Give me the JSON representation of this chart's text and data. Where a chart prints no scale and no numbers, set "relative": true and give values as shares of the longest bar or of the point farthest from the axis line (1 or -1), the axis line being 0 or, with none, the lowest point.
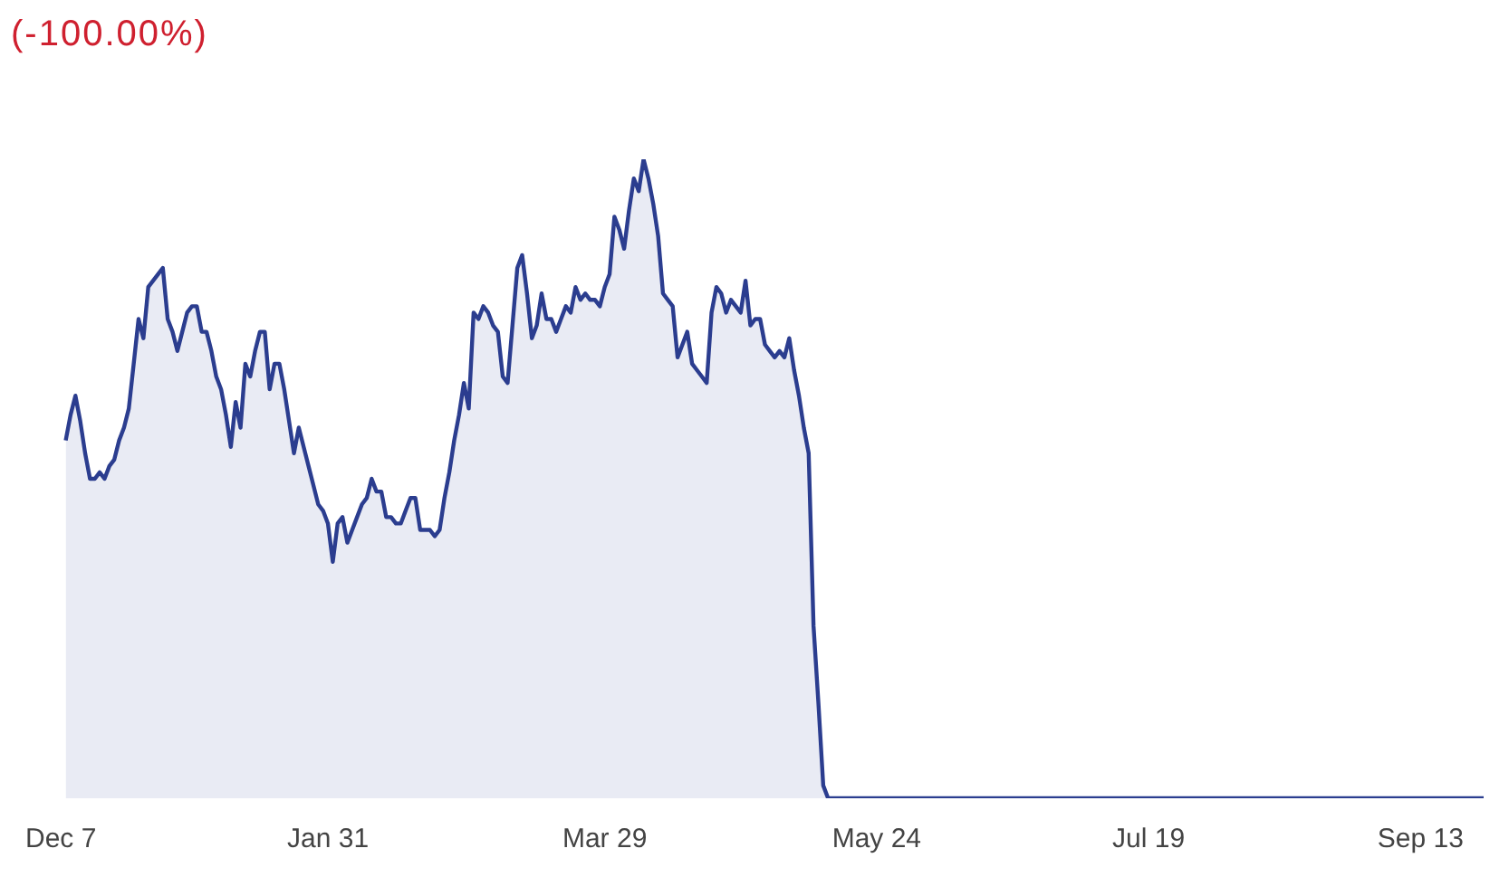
{
  "chart_data": {
    "type": "area",
    "relative": true,
    "annotations": [
      "(-100.00%)"
    ],
    "categories": [
      "Dec 7",
      null,
      null,
      null,
      null,
      null,
      null,
      null,
      null,
      null,
      null,
      null,
      null,
      null,
      null,
      null,
      null,
      null,
      null,
      null,
      null,
      null,
      null,
      null,
      null,
      null,
      null,
      null,
      null,
      null,
      null,
      null,
      null,
      null,
      null,
      null,
      null,
      null,
      null,
      null,
      null,
      null,
      null,
      null,
      null,
      null,
      null,
      null,
      null,
      null,
      null,
      null,
      null,
      null,
      null,
      "Jan 31",
      null,
      null,
      null,
      null,
      null,
      null,
      null,
      null,
      null,
      null,
      null,
      null,
      null,
      null,
      null,
      null,
      null,
      null,
      null,
      null,
      null,
      null,
      null,
      null,
      null,
      null,
      null,
      null,
      null,
      null,
      null,
      null,
      null,
      null,
      null,
      null,
      null,
      null,
      null,
      null,
      null,
      null,
      null,
      null,
      null,
      null,
      null,
      null,
      null,
      null,
      null,
      null,
      null,
      null,
      null,
      null,
      "Mar 29",
      null,
      null,
      null,
      null,
      null,
      null,
      null,
      null,
      null,
      null,
      null,
      null,
      null,
      null,
      null,
      null,
      null,
      null,
      null,
      null,
      null,
      null,
      null,
      null,
      null,
      null,
      null,
      null,
      null,
      null,
      null,
      null,
      null,
      null,
      null,
      null,
      null,
      null,
      null,
      null,
      null,
      null,
      null,
      null,
      null,
      null,
      null,
      null,
      null,
      null,
      null,
      null,
      null,
      null,
      null,
      "May 24",
      null,
      null,
      null,
      null,
      null,
      null,
      null,
      null,
      null,
      null,
      null,
      null,
      null,
      null,
      null,
      null,
      null,
      null,
      null,
      null,
      null,
      null,
      null,
      null,
      null,
      null,
      null,
      null,
      null,
      null,
      null,
      null,
      null,
      null,
      null,
      null,
      null,
      null,
      null,
      null,
      null,
      null,
      null,
      null,
      null,
      null,
      null,
      null,
      null,
      null,
      null,
      null,
      null,
      null,
      null,
      "Jul 19",
      null,
      null,
      null,
      null,
      null,
      null,
      null,
      null,
      null,
      null,
      null,
      null,
      null,
      null,
      null,
      null,
      null,
      null,
      null,
      null,
      null,
      null,
      null,
      null,
      null,
      null,
      null,
      null,
      null,
      null,
      null,
      null,
      null,
      null,
      null,
      null,
      null,
      null,
      null,
      null,
      null,
      null,
      null,
      null,
      null,
      null,
      null,
      null,
      null,
      null,
      null,
      null,
      null,
      null,
      null,
      "Sep 13",
      null,
      null,
      null,
      null,
      null,
      null,
      null,
      null,
      null,
      null,
      null,
      null,
      null
    ],
    "series": [
      {
        "color": "#2b3d8f",
        "values": [
          null,
          0.56,
          0.6,
          0.63,
          0.59,
          0.54,
          0.5,
          0.5,
          0.51,
          0.5,
          0.52,
          0.53,
          0.56,
          0.58,
          0.61,
          0.68,
          0.75,
          0.72,
          0.8,
          0.81,
          0.82,
          0.83,
          0.75,
          0.73,
          0.7,
          0.73,
          0.76,
          0.77,
          0.77,
          0.73,
          0.73,
          0.7,
          0.66,
          0.64,
          0.6,
          0.55,
          0.62,
          0.58,
          0.68,
          0.66,
          0.7,
          0.73,
          0.73,
          0.64,
          0.68,
          0.68,
          0.64,
          0.59,
          0.54,
          0.58,
          0.55,
          0.52,
          0.49,
          0.46,
          0.45,
          0.43,
          0.37,
          0.43,
          0.44,
          0.4,
          0.42,
          0.44,
          0.46,
          0.47,
          0.5,
          0.48,
          0.48,
          0.44,
          0.44,
          0.43,
          0.43,
          0.45,
          0.47,
          0.47,
          0.42,
          0.42,
          0.42,
          0.41,
          0.42,
          0.47,
          0.51,
          0.56,
          0.6,
          0.65,
          0.61,
          0.76,
          0.75,
          0.77,
          0.76,
          0.74,
          0.73,
          0.66,
          0.65,
          0.74,
          0.83,
          0.85,
          0.79,
          0.72,
          0.74,
          0.79,
          0.75,
          0.75,
          0.73,
          0.75,
          0.77,
          0.76,
          0.8,
          0.78,
          0.79,
          0.78,
          0.78,
          0.77,
          0.8,
          0.82,
          0.91,
          0.89,
          0.86,
          0.92,
          0.97,
          0.95,
          1,
          0.97,
          0.93,
          0.88,
          0.79,
          0.78,
          0.77,
          0.69,
          0.71,
          0.73,
          0.68,
          0.67,
          0.66,
          0.65,
          0.76,
          0.8,
          0.79,
          0.76,
          0.78,
          0.77,
          0.76,
          0.81,
          0.74,
          0.75,
          0.75,
          0.71,
          0.7,
          0.69,
          0.7,
          0.69,
          0.72,
          0.67,
          0.63,
          0.58,
          0.54,
          0.27,
          0.15,
          0.02,
          0,
          0,
          0,
          0,
          0,
          0,
          0,
          0,
          0,
          0,
          0,
          0,
          0,
          0,
          0,
          0,
          0,
          0,
          0,
          0,
          0,
          0,
          0,
          0,
          0,
          0,
          0,
          0,
          0,
          0,
          0,
          0,
          0,
          0,
          0,
          0,
          0,
          0,
          0,
          0,
          0,
          0,
          0,
          0,
          0,
          0,
          0,
          0,
          0,
          0,
          0,
          0,
          0,
          0,
          0,
          0,
          0,
          0,
          0,
          0,
          0,
          0,
          0,
          0,
          0,
          0,
          0,
          0,
          0,
          0,
          0,
          0,
          0,
          0,
          0,
          0,
          0,
          0,
          0,
          0,
          0,
          0,
          0,
          0,
          0,
          0,
          0,
          0,
          0,
          0,
          0,
          0,
          0,
          0,
          0,
          0,
          0,
          0,
          0,
          0,
          0,
          0,
          0,
          0,
          0,
          0,
          0,
          0,
          0,
          0,
          0,
          0,
          0,
          0,
          0,
          0,
          0,
          0,
          0,
          0,
          0,
          0,
          0,
          0,
          0,
          0,
          0,
          0,
          0,
          0,
          0,
          0,
          0,
          0,
          0,
          0
        ]
      }
    ],
    "tick_labels": "x",
    "grid": false,
    "legend": false
  }
}
